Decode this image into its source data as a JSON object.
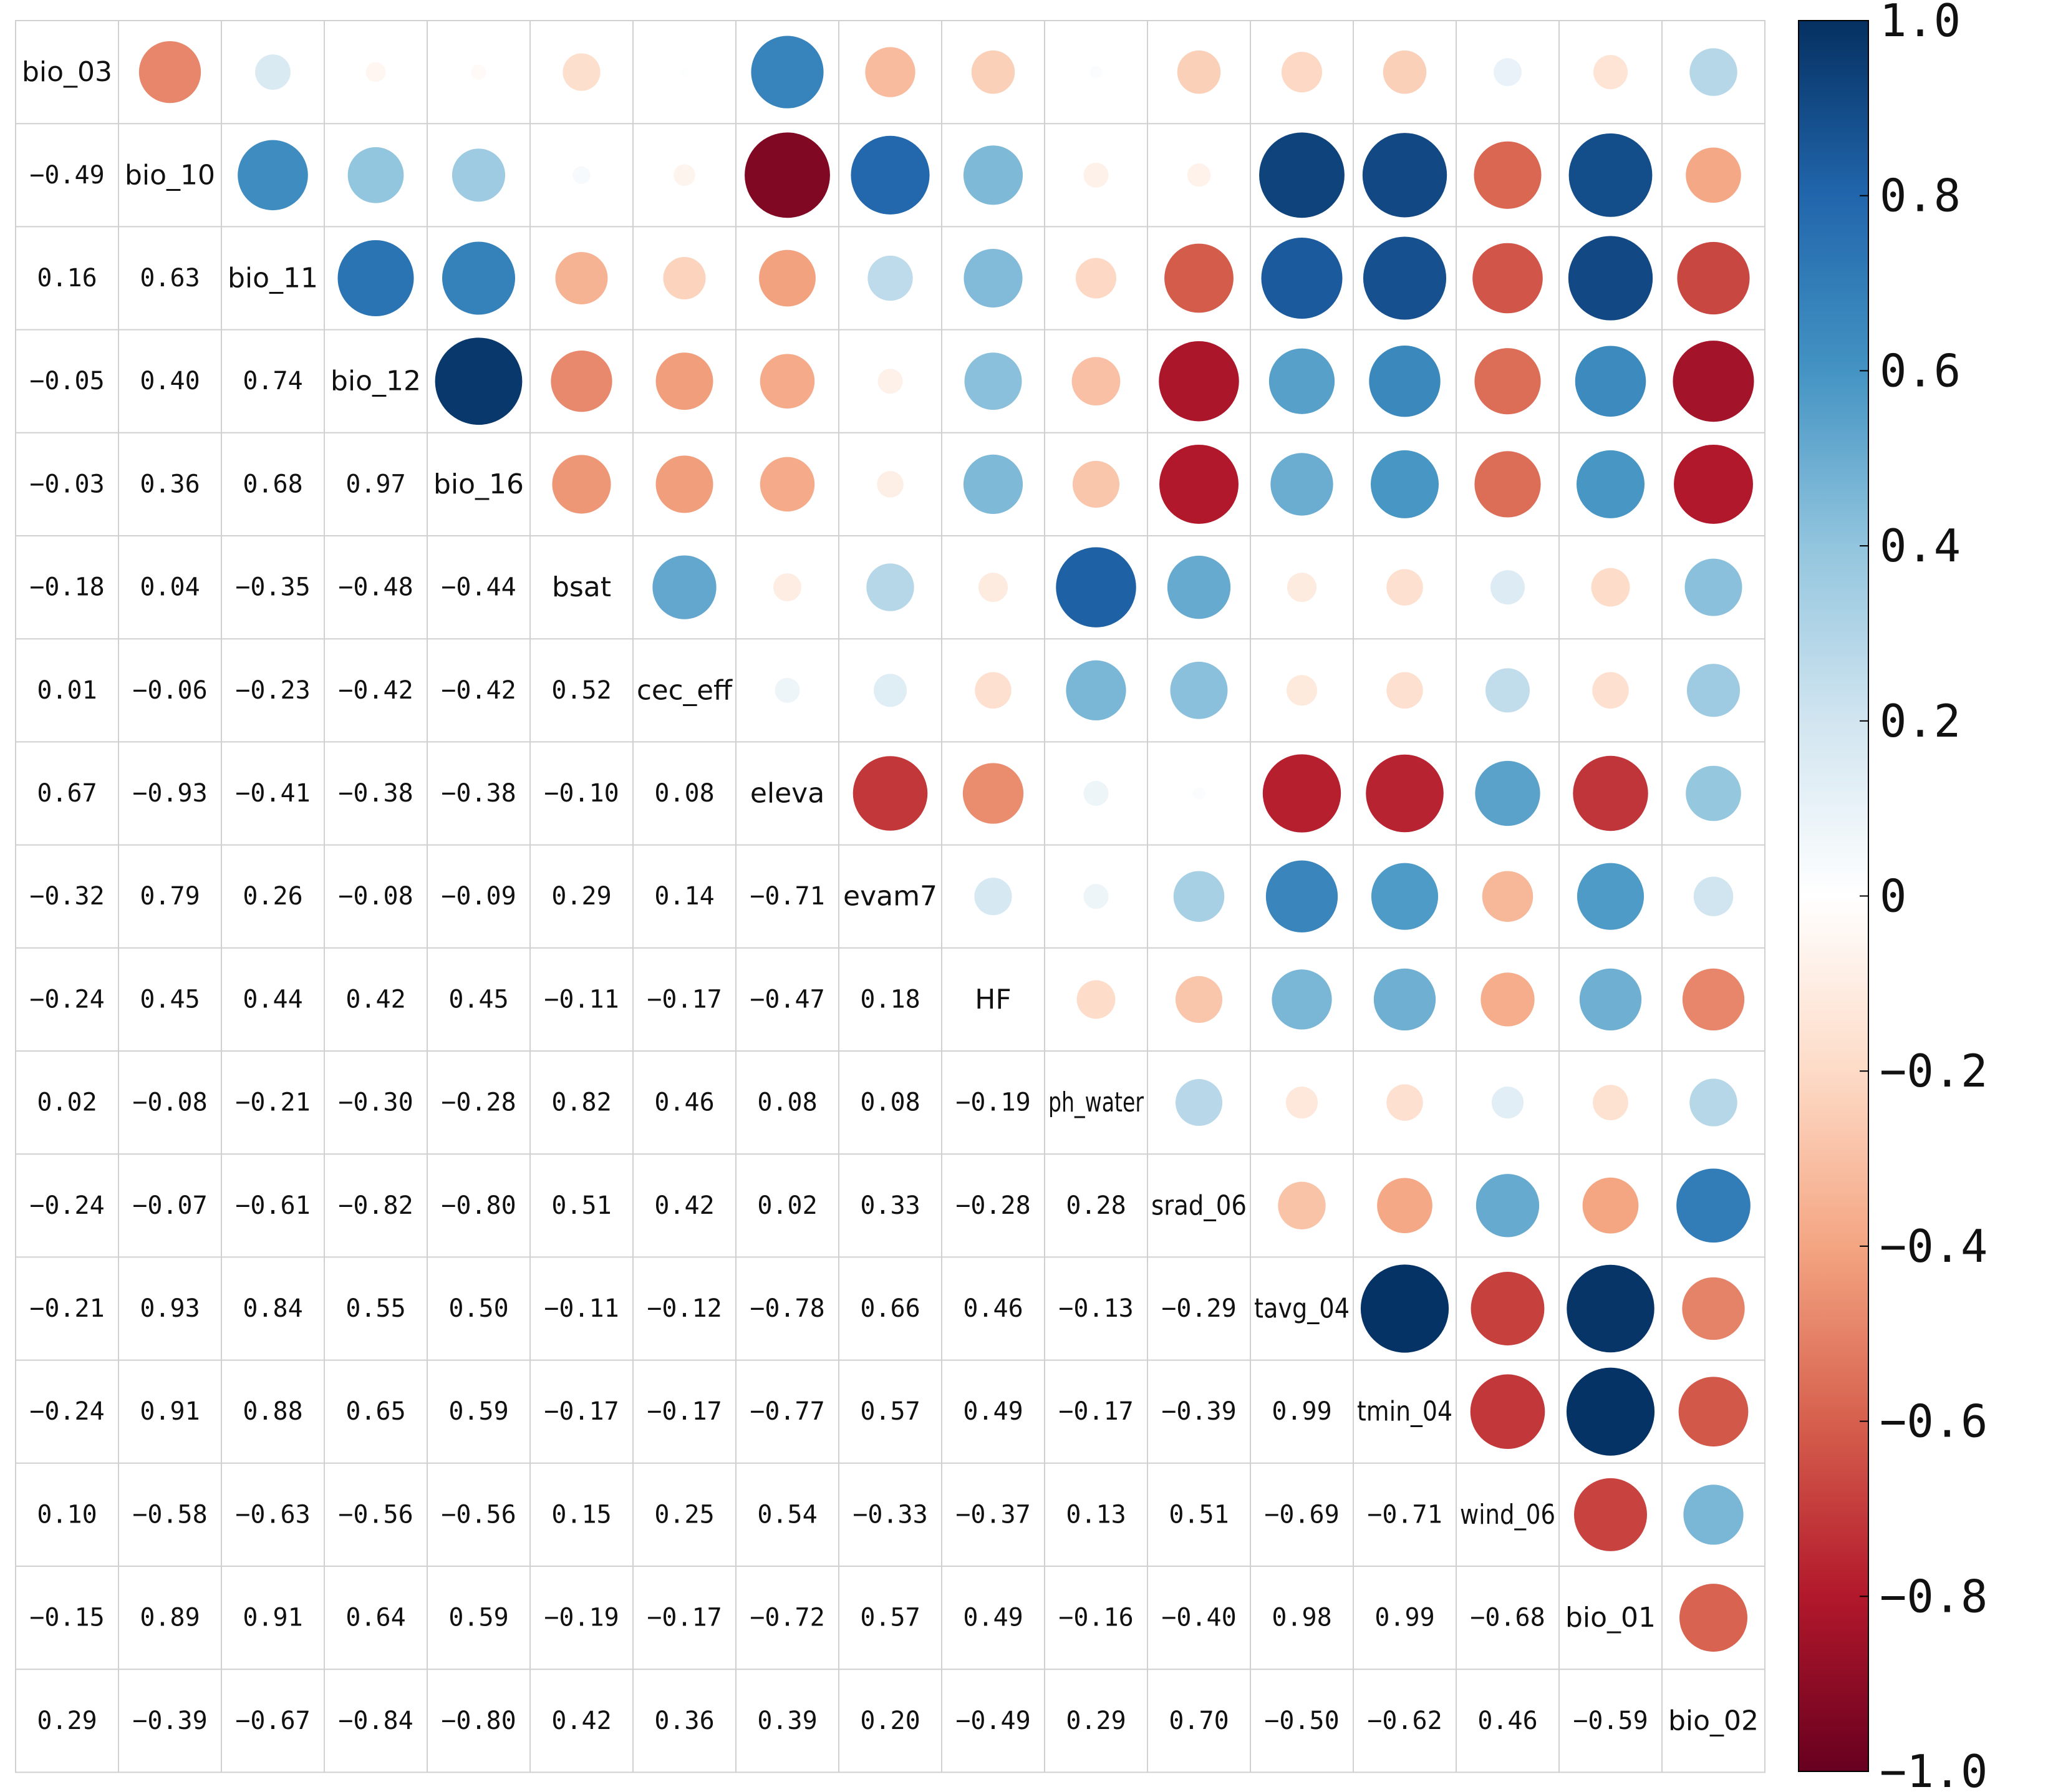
{
  "chart_data": {
    "type": "heatmap",
    "subtype": "correlation-matrix-mixed",
    "title": "",
    "upper_method": "circle",
    "lower_method": "number",
    "variables": [
      "bio_03",
      "bio_10",
      "bio_11",
      "bio_12",
      "bio_16",
      "bsat",
      "cec_eff",
      "eleva",
      "evam7",
      "HF",
      "ph_water",
      "srad_06",
      "tavg_04",
      "tmin_04",
      "wind_06",
      "bio_01",
      "bio_02"
    ],
    "matrix": [
      [
        1.0,
        -0.49,
        0.16,
        -0.05,
        -0.03,
        -0.18,
        0.01,
        0.67,
        -0.32,
        -0.24,
        0.02,
        -0.24,
        -0.21,
        -0.24,
        0.1,
        -0.15,
        0.29
      ],
      [
        -0.49,
        1.0,
        0.63,
        0.4,
        0.36,
        0.04,
        -0.06,
        -0.93,
        0.79,
        0.45,
        -0.08,
        -0.07,
        0.93,
        0.91,
        -0.58,
        0.89,
        -0.39
      ],
      [
        0.16,
        0.63,
        1.0,
        0.74,
        0.68,
        -0.35,
        -0.23,
        -0.41,
        0.26,
        0.44,
        -0.21,
        -0.61,
        0.84,
        0.88,
        -0.63,
        0.91,
        -0.67
      ],
      [
        -0.05,
        0.4,
        0.74,
        1.0,
        0.97,
        -0.48,
        -0.42,
        -0.38,
        -0.08,
        0.42,
        -0.3,
        -0.82,
        0.55,
        0.65,
        -0.56,
        0.64,
        -0.84
      ],
      [
        -0.03,
        0.36,
        0.68,
        0.97,
        1.0,
        -0.44,
        -0.42,
        -0.38,
        -0.09,
        0.45,
        -0.28,
        -0.8,
        0.5,
        0.59,
        -0.56,
        0.59,
        -0.8
      ],
      [
        -0.18,
        0.04,
        -0.35,
        -0.48,
        -0.44,
        1.0,
        0.52,
        -0.1,
        0.29,
        -0.11,
        0.82,
        0.51,
        -0.11,
        -0.17,
        0.15,
        -0.19,
        0.42
      ],
      [
        0.01,
        -0.06,
        -0.23,
        -0.42,
        -0.42,
        0.52,
        1.0,
        0.08,
        0.14,
        -0.17,
        0.46,
        0.42,
        -0.12,
        -0.17,
        0.25,
        -0.17,
        0.36
      ],
      [
        0.67,
        -0.93,
        -0.41,
        -0.38,
        -0.38,
        -0.1,
        0.08,
        1.0,
        -0.71,
        -0.47,
        0.08,
        0.02,
        -0.78,
        -0.77,
        0.54,
        -0.72,
        0.39
      ],
      [
        -0.32,
        0.79,
        0.26,
        -0.08,
        -0.09,
        0.29,
        0.14,
        -0.71,
        1.0,
        0.18,
        0.08,
        0.33,
        0.66,
        0.57,
        -0.33,
        0.57,
        0.2
      ],
      [
        -0.24,
        0.45,
        0.44,
        0.42,
        0.45,
        -0.11,
        -0.17,
        -0.47,
        0.18,
        1.0,
        -0.19,
        -0.28,
        0.46,
        0.49,
        -0.37,
        0.49,
        -0.49
      ],
      [
        0.02,
        -0.08,
        -0.21,
        -0.3,
        -0.28,
        0.82,
        0.46,
        0.08,
        0.08,
        -0.19,
        1.0,
        0.28,
        -0.13,
        -0.17,
        0.13,
        -0.16,
        0.29
      ],
      [
        -0.24,
        -0.07,
        -0.61,
        -0.82,
        -0.8,
        0.51,
        0.42,
        0.02,
        0.33,
        -0.28,
        0.28,
        1.0,
        -0.29,
        -0.39,
        0.51,
        -0.4,
        0.7
      ],
      [
        -0.21,
        0.93,
        0.84,
        0.55,
        0.5,
        -0.11,
        -0.12,
        -0.78,
        0.66,
        0.46,
        -0.13,
        -0.29,
        1.0,
        0.99,
        -0.69,
        0.98,
        -0.5
      ],
      [
        -0.24,
        0.91,
        0.88,
        0.65,
        0.59,
        -0.17,
        -0.17,
        -0.77,
        0.57,
        0.49,
        -0.17,
        -0.39,
        0.99,
        1.0,
        -0.71,
        0.99,
        -0.62
      ],
      [
        0.1,
        -0.58,
        -0.63,
        -0.56,
        -0.56,
        0.15,
        0.25,
        0.54,
        -0.33,
        -0.37,
        0.13,
        0.51,
        -0.69,
        -0.71,
        1.0,
        -0.68,
        0.46
      ],
      [
        -0.15,
        0.89,
        0.91,
        0.64,
        0.59,
        -0.19,
        -0.17,
        -0.72,
        0.57,
        0.49,
        -0.16,
        -0.4,
        0.98,
        0.99,
        -0.68,
        1.0,
        -0.59
      ],
      [
        0.29,
        -0.39,
        -0.67,
        -0.84,
        -0.8,
        0.42,
        0.36,
        0.39,
        0.2,
        -0.49,
        0.29,
        0.7,
        -0.5,
        -0.62,
        0.46,
        -0.59,
        1.0
      ]
    ],
    "colorbar": {
      "range": [
        -1.0,
        1.0
      ],
      "ticks": [
        1.0,
        0.8,
        0.6,
        0.4,
        0.2,
        0,
        -0.2,
        -0.4,
        -0.6,
        -0.8,
        -1.0
      ],
      "tick_labels": [
        "1.0",
        "0.8",
        "0.6",
        "0.4",
        "0.2",
        "0",
        "−0.2",
        "−0.4",
        "−0.6",
        "−0.8",
        "−1.0"
      ],
      "placement": "right"
    },
    "colors": {
      "scale": [
        "#67001f",
        "#b2182b",
        "#d6604d",
        "#f4a582",
        "#fddbc7",
        "#ffffff",
        "#d1e5f0",
        "#92c5de",
        "#4393c3",
        "#2166ac",
        "#053061"
      ],
      "grid": "#d0d0d0",
      "text": "#111111"
    }
  }
}
